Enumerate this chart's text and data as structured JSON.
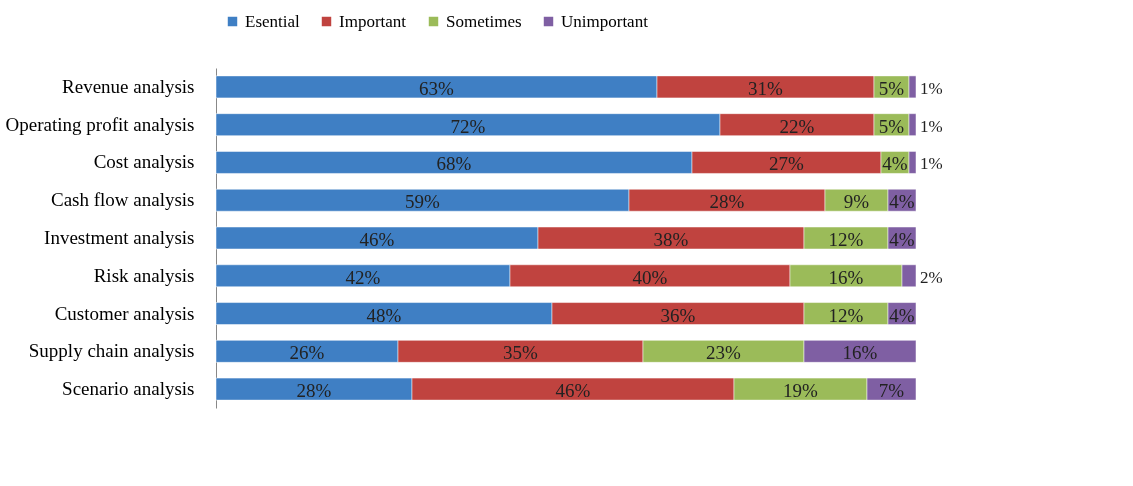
{
  "chart_data": {
    "type": "bar",
    "orientation": "horizontal",
    "stacked": true,
    "legend": "top",
    "tick_labels": "y",
    "categories": [
      "Revenue analysis",
      "Operating profit analysis",
      "Cost analysis",
      "Cash flow analysis",
      "Investment analysis",
      "Risk analysis",
      "Customer analysis",
      "Supply chain analysis",
      "Scenario analysis"
    ],
    "series": [
      {
        "name": "Esential",
        "color": "#3f7fc4",
        "values": [
          63,
          72,
          68,
          59,
          46,
          42,
          48,
          26,
          28
        ],
        "value_labels": [
          "63%",
          "72%",
          "68%",
          "59%",
          "46%",
          "42%",
          "48%",
          "26%",
          "28%"
        ]
      },
      {
        "name": "Important",
        "color": "#c0433f",
        "values": [
          31,
          22,
          27,
          28,
          38,
          40,
          36,
          35,
          46
        ],
        "value_labels": [
          "31%",
          "22%",
          "27%",
          "28%",
          "38%",
          "40%",
          "36%",
          "35%",
          "46%"
        ]
      },
      {
        "name": "Sometimes",
        "color": "#9bbb59",
        "values": [
          5,
          5,
          4,
          9,
          12,
          16,
          12,
          23,
          19
        ],
        "value_labels": [
          "5%",
          "5%",
          "4%",
          "9%",
          "12%",
          "16%",
          "12%",
          "23%",
          "19%"
        ]
      },
      {
        "name": "Unimportant",
        "color": "#7f5fa3",
        "values": [
          1,
          1,
          1,
          4,
          4,
          2,
          4,
          16,
          7
        ],
        "value_labels": [
          "1%",
          "1%",
          "1%",
          "4%",
          "4%",
          "2%",
          "4%",
          "16%",
          "7%"
        ]
      }
    ]
  }
}
